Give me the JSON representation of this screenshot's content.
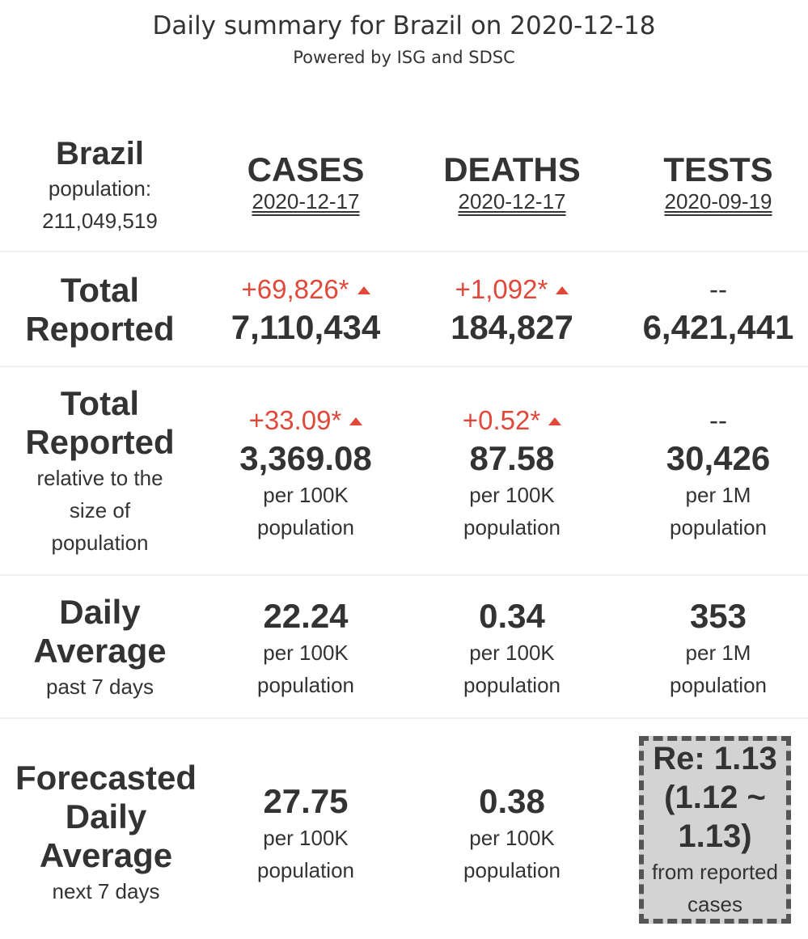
{
  "header": {
    "title": "Daily summary for Brazil on 2020-12-18",
    "subtitle": "Powered by ISG and SDSC"
  },
  "country": {
    "name": "Brazil",
    "population_label": "population:",
    "population": "211,049,519"
  },
  "columns": [
    {
      "label": "CASES",
      "date": "2020-12-17"
    },
    {
      "label": "DEATHS",
      "date": "2020-12-17"
    },
    {
      "label": "TESTS",
      "date": "2020-09-19"
    }
  ],
  "total_reported": {
    "label_line1": "Total",
    "label_line2": "Reported",
    "cases": {
      "delta": "+69,826*",
      "value": "7,110,434"
    },
    "deaths": {
      "delta": "+1,092*",
      "value": "184,827"
    },
    "tests": {
      "delta": "--",
      "value": "6,421,441"
    }
  },
  "relative": {
    "label_line1": "Total",
    "label_line2": "Reported",
    "sub1": "relative to the",
    "sub2": "size of",
    "sub3": "population",
    "cases": {
      "delta": "+33.09*",
      "value": "3,369.08",
      "unit": "per 100K",
      "unit2": "population"
    },
    "deaths": {
      "delta": "+0.52*",
      "value": "87.58",
      "unit": "per 100K",
      "unit2": "population"
    },
    "tests": {
      "delta": "--",
      "value": "30,426",
      "unit": "per 1M",
      "unit2": "population"
    }
  },
  "daily_average": {
    "label_line1": "Daily",
    "label_line2": "Average",
    "sub": "past 7 days",
    "cases": {
      "value": "22.24",
      "unit": "per 100K",
      "unit2": "population"
    },
    "deaths": {
      "value": "0.34",
      "unit": "per 100K",
      "unit2": "population"
    },
    "tests": {
      "value": "353",
      "unit": "per 1M",
      "unit2": "population"
    }
  },
  "forecast": {
    "label_line1": "Forecasted",
    "label_line2": "Daily",
    "label_line3": "Average",
    "sub": "next 7 days",
    "cases": {
      "value": "27.75",
      "unit": "per 100K",
      "unit2": "population"
    },
    "deaths": {
      "value": "0.38",
      "unit": "per 100K",
      "unit2": "population"
    },
    "re": {
      "line1": "Re: 1.13",
      "line2": "(1.12 ~",
      "line3": "1.13)",
      "note1": "from reported",
      "note2": "cases"
    }
  },
  "colors": {
    "increase": "#e0483a",
    "re_box_bg": "#d3d3d3",
    "re_box_border": "#555555"
  },
  "icons": {
    "increase": "triangle-up-icon"
  }
}
